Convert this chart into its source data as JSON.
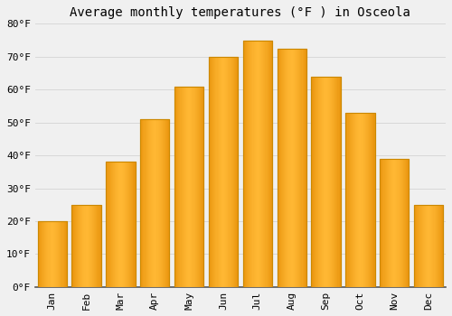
{
  "title": "Average monthly temperatures (°F ) in Osceola",
  "months": [
    "Jan",
    "Feb",
    "Mar",
    "Apr",
    "May",
    "Jun",
    "Jul",
    "Aug",
    "Sep",
    "Oct",
    "Nov",
    "Dec"
  ],
  "values": [
    20,
    25,
    38,
    51,
    61,
    70,
    75,
    72.5,
    64,
    53,
    39,
    25
  ],
  "bar_color_light": "#FFB733",
  "bar_color_dark": "#E08800",
  "bar_edge_color": "#CC8800",
  "ylim": [
    0,
    80
  ],
  "yticks": [
    0,
    10,
    20,
    30,
    40,
    50,
    60,
    70,
    80
  ],
  "ylabel_suffix": "°F",
  "bg_color": "#f0f0f0",
  "grid_color": "#d8d8d8",
  "title_fontsize": 10,
  "tick_fontsize": 8,
  "font_family": "monospace",
  "bar_width": 0.85
}
